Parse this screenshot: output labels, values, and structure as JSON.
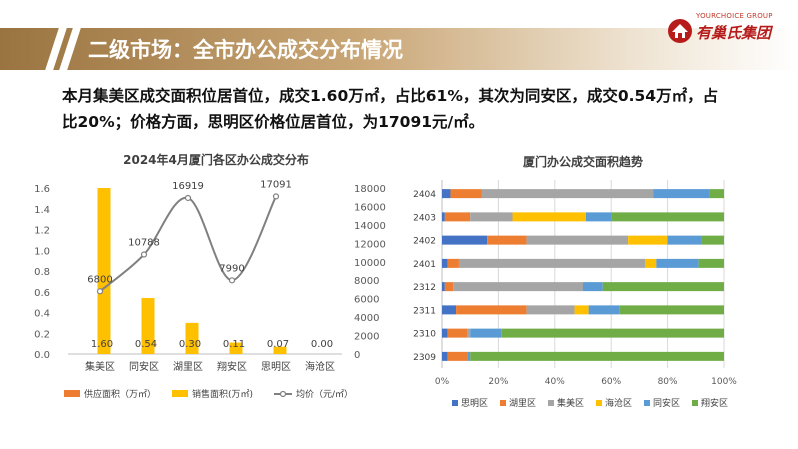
{
  "header": {
    "title": "二级市场：全市办公成交分布情况"
  },
  "logo": {
    "english": "YOURCHOICE GROUP",
    "chinese": "有巢氏集团",
    "brand_color": "#b71c1c"
  },
  "summary": {
    "line1": "本月集美区成交面积位居首位，成交1.60万㎡，占比61%，其次为同安区，成交0.54万㎡，占",
    "line2": "比20%；价格方面，思明区价格位居首位，为17091元/㎡。"
  },
  "chart_data": [
    {
      "type": "bar",
      "title": "2024年4月厦门各区办公成交分布",
      "categories": [
        "集美区",
        "同安区",
        "湖里区",
        "翔安区",
        "思明区",
        "海沧区"
      ],
      "series": [
        {
          "name": "供应面积（万㎡）",
          "color": "#ed7d31",
          "values": [
            0,
            0,
            0,
            0,
            0,
            0
          ]
        },
        {
          "name": "销售面积(万㎡)",
          "color": "#ffc000",
          "values": [
            1.6,
            0.54,
            0.3,
            0.11,
            0.07,
            0.0
          ]
        },
        {
          "name": "均价（元/㎡）",
          "type": "line",
          "color": "#808080",
          "values": [
            6800,
            10788,
            16919,
            7990,
            17091,
            null
          ]
        }
      ],
      "bar_labels": [
        "1.60",
        "0.54",
        "0.30",
        "0.11",
        "0.07",
        "0.00"
      ],
      "price_labels": [
        "6800",
        "10788",
        "16919",
        "7990",
        "17091"
      ],
      "ylim": [
        0,
        1.6
      ],
      "yticks": [
        "0.0",
        "0.2",
        "0.4",
        "0.6",
        "0.8",
        "1.0",
        "1.2",
        "1.4",
        "1.6"
      ],
      "y2lim": [
        0,
        18000
      ],
      "y2ticks": [
        "0",
        "2000",
        "4000",
        "6000",
        "8000",
        "10000",
        "12000",
        "14000",
        "16000",
        "18000"
      ],
      "legend_position": "bottom",
      "grid": false
    },
    {
      "type": "bar",
      "orientation": "horizontal",
      "stacked": "percent",
      "title": "厦门办公成交面积趋势",
      "categories": [
        "2404",
        "2403",
        "2402",
        "2401",
        "2312",
        "2311",
        "2310",
        "2309"
      ],
      "series": [
        {
          "name": "思明区",
          "color": "#4472c4",
          "values": [
            3,
            1,
            16,
            2,
            1,
            5,
            2,
            2
          ]
        },
        {
          "name": "湖里区",
          "color": "#ed7d31",
          "values": [
            11,
            9,
            14,
            4,
            3,
            25,
            7,
            7
          ]
        },
        {
          "name": "集美区",
          "color": "#a5a5a5",
          "values": [
            61,
            15,
            36,
            66,
            46,
            17,
            1,
            0
          ]
        },
        {
          "name": "海沧区",
          "color": "#ffc000",
          "values": [
            0,
            26,
            14,
            4,
            0,
            5,
            0,
            0
          ]
        },
        {
          "name": "同安区",
          "color": "#5b9bd5",
          "values": [
            20,
            9,
            12,
            15,
            7,
            11,
            11,
            1
          ]
        },
        {
          "name": "翔安区",
          "color": "#70ad47",
          "values": [
            5,
            40,
            8,
            9,
            43,
            37,
            79,
            90
          ]
        }
      ],
      "xlim": [
        0,
        100
      ],
      "xticks": [
        "0%",
        "20%",
        "40%",
        "60%",
        "80%",
        "100%"
      ],
      "legend_position": "bottom",
      "grid": true
    }
  ]
}
